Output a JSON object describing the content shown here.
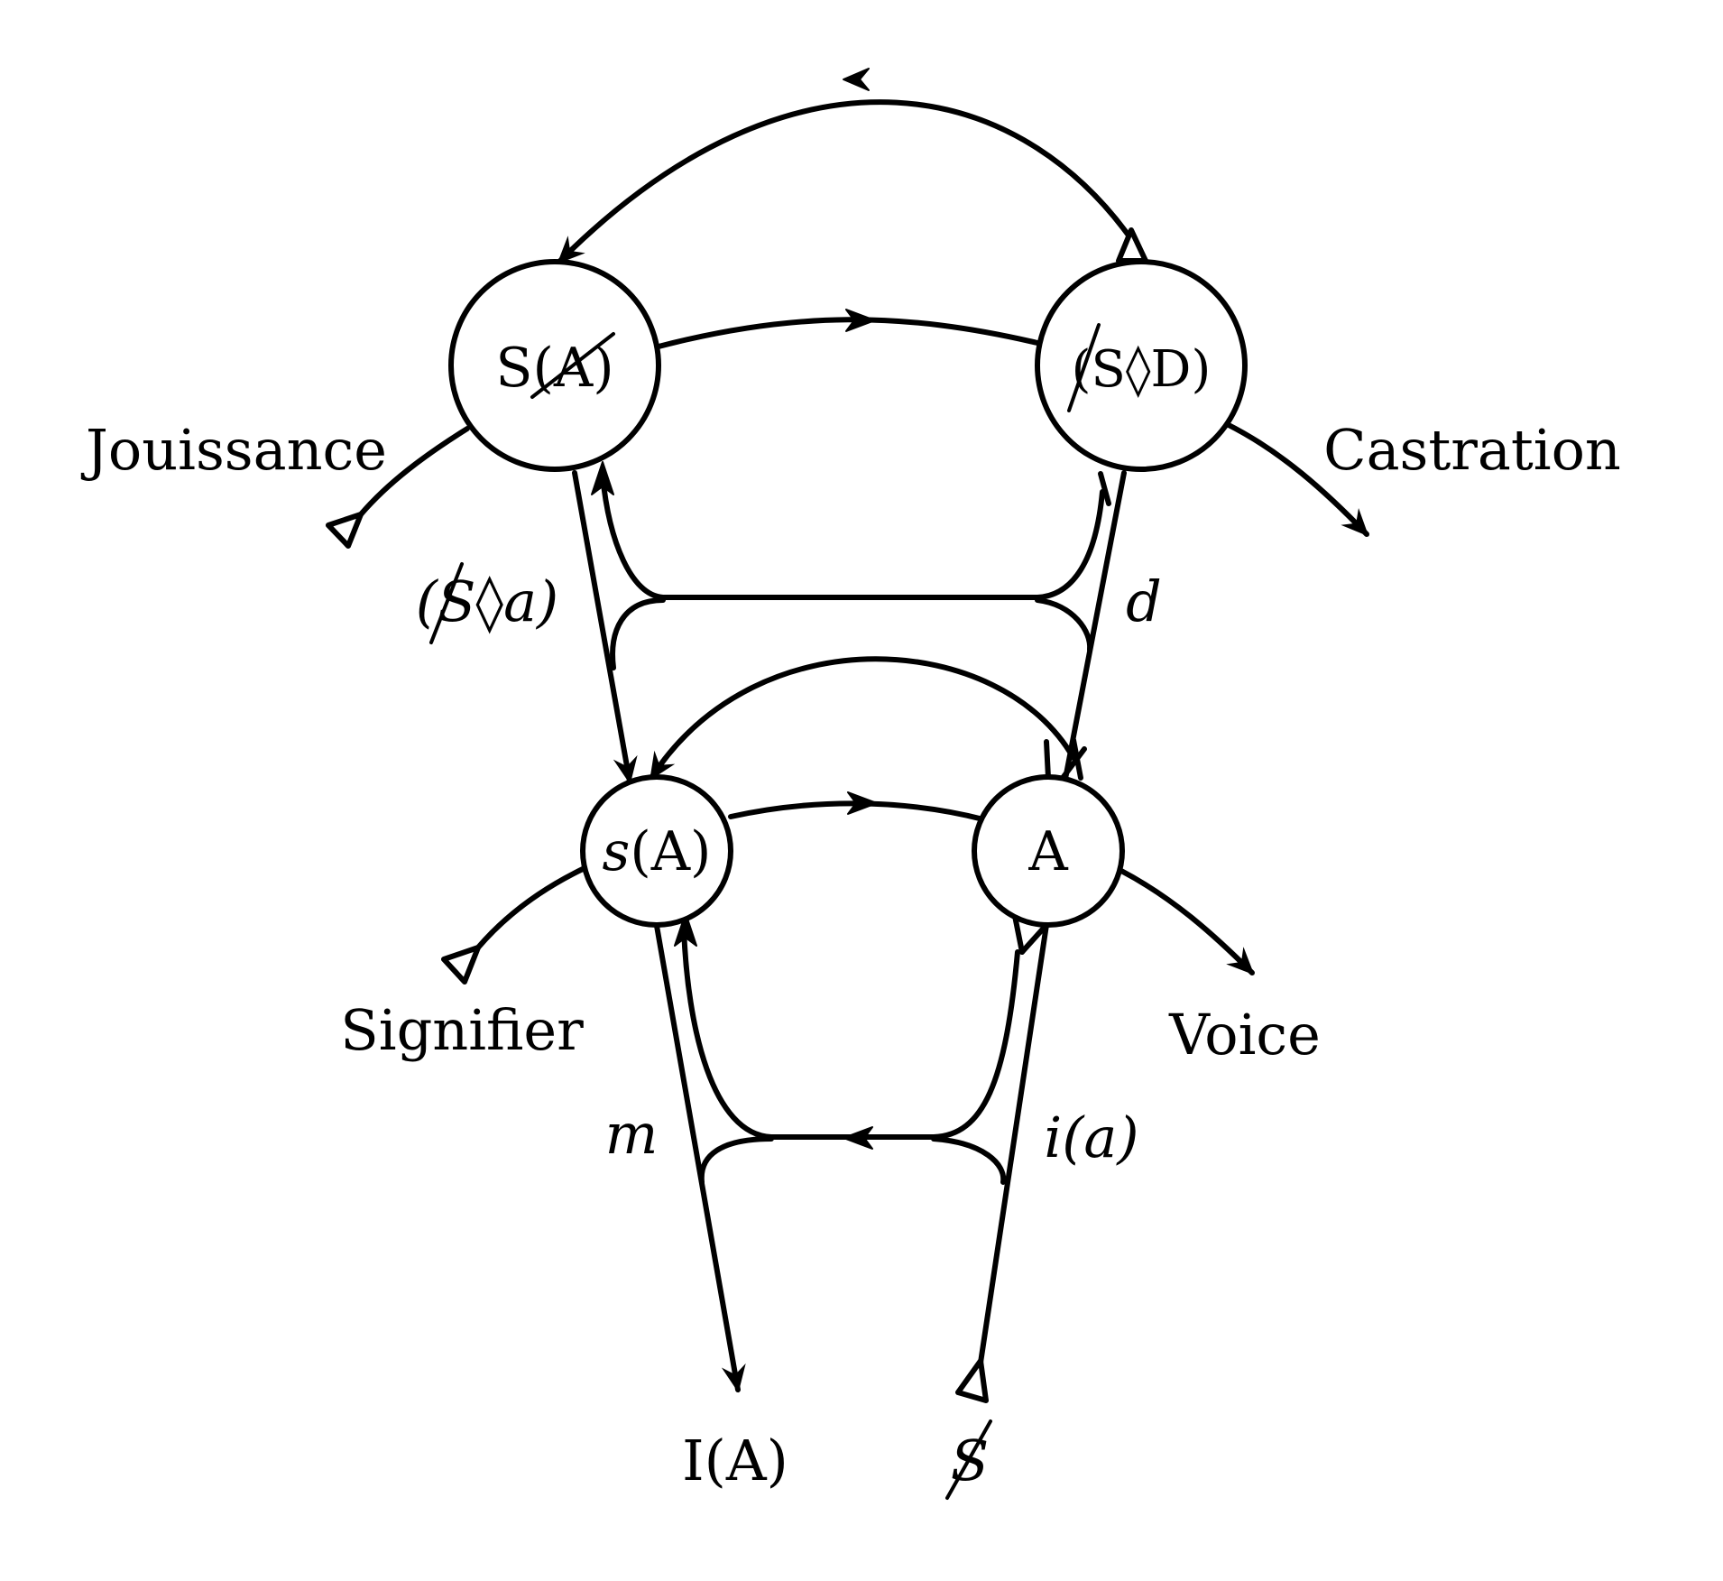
{
  "nodes": {
    "upper_left": {
      "label": "S(A)"
    },
    "upper_right": {
      "label": "(S◊D)"
    },
    "lower_left": {
      "label_s": "s",
      "label_rest": "(A)"
    },
    "lower_right": {
      "label": "A"
    }
  },
  "labels": {
    "jouissance": "Jouissance",
    "castration": "Castration",
    "signifier": "Signifier",
    "voice": "Voice",
    "fantasy": "(S◊a)",
    "desire": "d",
    "ego": "m",
    "image": "i(a)",
    "ego_ideal": "I(A)",
    "subject": "S"
  }
}
